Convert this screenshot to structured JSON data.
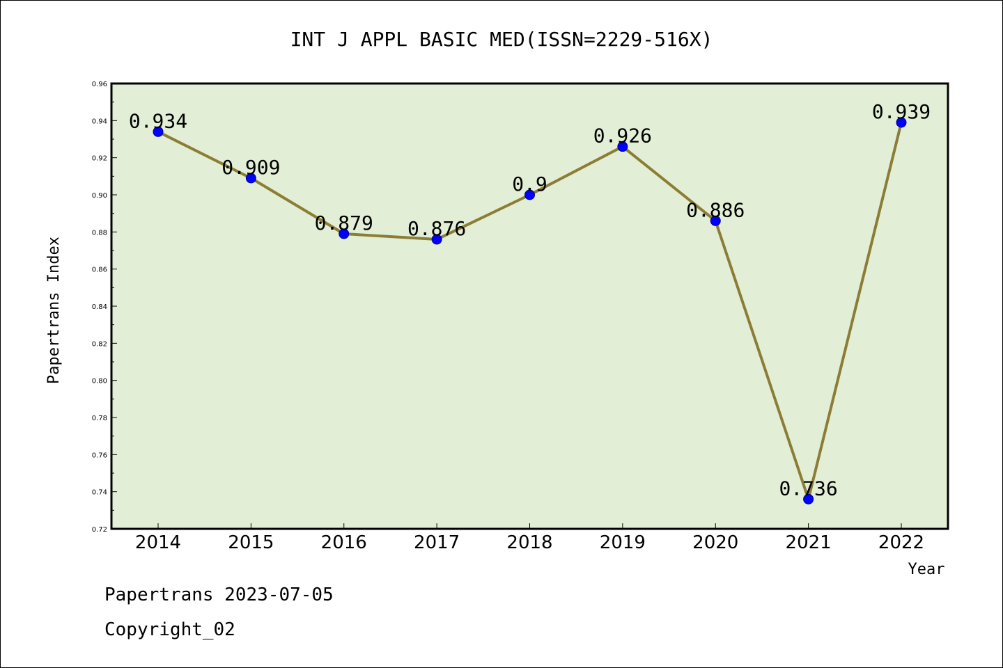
{
  "chart_data": {
    "type": "line",
    "title": "INT J APPL BASIC MED(ISSN=2229-516X)",
    "xlabel": "Year",
    "ylabel": "Papertrans Index",
    "categories": [
      "2014",
      "2015",
      "2016",
      "2017",
      "2018",
      "2019",
      "2020",
      "2021",
      "2022"
    ],
    "values": [
      0.934,
      0.909,
      0.879,
      0.876,
      0.9,
      0.926,
      0.886,
      0.736,
      0.939
    ],
    "data_labels": [
      "0.934",
      "0.909",
      "0.879",
      "0.876",
      "0.9",
      "0.926",
      "0.886",
      "0.736",
      "0.939"
    ],
    "ylim": [
      0.72,
      0.96
    ],
    "yticks": [
      "0.72",
      "0.74",
      "0.76",
      "0.78",
      "0.80",
      "0.82",
      "0.84",
      "0.86",
      "0.88",
      "0.90",
      "0.92",
      "0.94",
      "0.96"
    ],
    "grid": false,
    "colors": {
      "plot_bg": "#e2efd6",
      "line": "#8b7d35",
      "marker": "#0000ff"
    }
  },
  "footer": {
    "line1": "Papertrans 2023-07-05",
    "line2": "Copyright_02"
  }
}
